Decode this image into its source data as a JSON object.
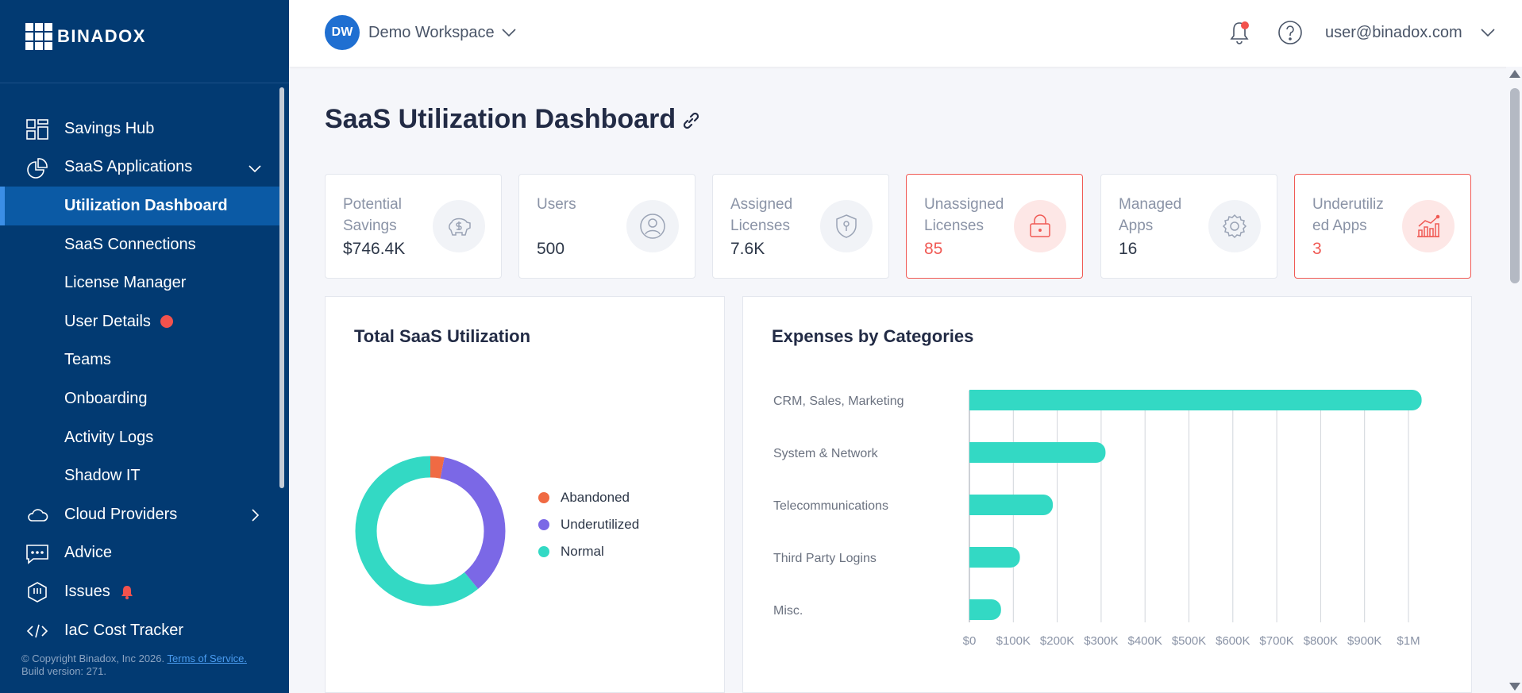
{
  "app": {
    "logo_text": "BINADOX"
  },
  "sidebar": {
    "items": [
      {
        "label": "Savings Hub"
      },
      {
        "label": "SaaS Applications"
      },
      {
        "label": "Utilization Dashboard"
      },
      {
        "label": "SaaS Connections"
      },
      {
        "label": "License Manager"
      },
      {
        "label": "User Details"
      },
      {
        "label": "Teams"
      },
      {
        "label": "Onboarding"
      },
      {
        "label": "Activity Logs"
      },
      {
        "label": "Shadow IT"
      },
      {
        "label": "Cloud Providers"
      },
      {
        "label": "Advice"
      },
      {
        "label": "Issues"
      },
      {
        "label": "IaC Cost Tracker"
      }
    ],
    "footer": {
      "copyright": "© Copyright Binadox, Inc 2026.",
      "terms": "Terms of Service.",
      "build": "Build version: 271."
    }
  },
  "header": {
    "workspace_initials": "DW",
    "workspace_name": "Demo Workspace",
    "user_email": "user@binadox.com"
  },
  "page": {
    "title": "SaaS Utilization Dashboard"
  },
  "stats": [
    {
      "title": "Potential Savings",
      "value": "$746.4K"
    },
    {
      "title": "Users",
      "value": "500"
    },
    {
      "title": "Assigned Licenses",
      "value": "7.6K"
    },
    {
      "title": "Unassigned Licenses",
      "value": "85"
    },
    {
      "title": "Managed Apps",
      "value": "16"
    },
    {
      "title": "Underutilized Apps",
      "value": "3"
    }
  ],
  "colors": {
    "abandoned": "#f06a43",
    "underutilized": "#7b68e6",
    "normal": "#33d9c4",
    "warn": "#f05a55",
    "sidebar": "#023a72"
  },
  "utilization": {
    "title": "Total SaaS Utilization",
    "legend": [
      "Abandoned",
      "Underutilized",
      "Normal"
    ]
  },
  "expenses": {
    "title": "Expenses by Categories"
  },
  "chart_data": [
    {
      "type": "pie",
      "title": "Total SaaS Utilization",
      "labels": [
        "Abandoned",
        "Underutilized",
        "Normal"
      ],
      "values": [
        3,
        36,
        61
      ],
      "donut": true,
      "legend": "right"
    },
    {
      "type": "bar",
      "orientation": "horizontal",
      "title": "Expenses by Categories",
      "categories": [
        "CRM, Sales, Marketing",
        "System & Network",
        "Telecommunications",
        "Third Party Logins",
        "Misc."
      ],
      "values": [
        1030000,
        310000,
        190000,
        115000,
        72000
      ],
      "xlim": [
        0,
        1000000
      ],
      "xticks": [
        "$0",
        "$100K",
        "$200K",
        "$300K",
        "$400K",
        "$500K",
        "$600K",
        "$700K",
        "$800K",
        "$900K",
        "$1M"
      ],
      "grid": true
    }
  ]
}
